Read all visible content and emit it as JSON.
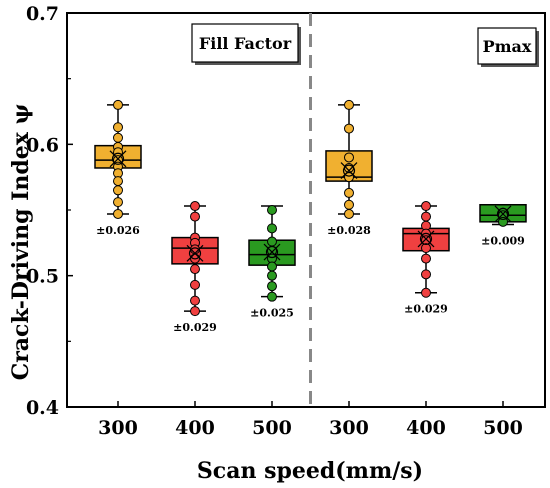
{
  "chart_data": {
    "type": "box",
    "xlabel": "Scan speed(mm/s)",
    "ylabel": "Crack-Driving Index ψ",
    "ylim": [
      0.4,
      0.7
    ],
    "yticks": [
      "0.4",
      "0.5",
      "0.6",
      "0.7"
    ],
    "groups": [
      {
        "label": "Fill Factor",
        "categories": [
          "300",
          "400",
          "500"
        ]
      },
      {
        "label": "Pmax",
        "categories": [
          "300",
          "400",
          "500"
        ]
      }
    ],
    "boxes": [
      {
        "group": 0,
        "category": "300",
        "color": "#F0B030",
        "q1": 0.582,
        "median": 0.588,
        "q3": 0.599,
        "mean": 0.589,
        "whisker_low": 0.547,
        "whisker_high": 0.63,
        "points": [
          0.63,
          0.613,
          0.605,
          0.598,
          0.594,
          0.588,
          0.583,
          0.578,
          0.572,
          0.565,
          0.556,
          0.547
        ],
        "sd_label": "±0.026"
      },
      {
        "group": 0,
        "category": "400",
        "color": "#F04040",
        "q1": 0.509,
        "median": 0.521,
        "q3": 0.529,
        "mean": 0.517,
        "whisker_low": 0.473,
        "whisker_high": 0.553,
        "points": [
          0.553,
          0.545,
          0.529,
          0.525,
          0.52,
          0.513,
          0.505,
          0.493,
          0.481,
          0.473
        ],
        "sd_label": "±0.029"
      },
      {
        "group": 0,
        "category": "500",
        "color": "#2A9A20",
        "q1": 0.508,
        "median": 0.516,
        "q3": 0.527,
        "mean": 0.518,
        "whisker_low": 0.484,
        "whisker_high": 0.553,
        "points": [
          0.55,
          0.536,
          0.526,
          0.519,
          0.513,
          0.507,
          0.5,
          0.492,
          0.484
        ],
        "sd_label": "±0.025"
      },
      {
        "group": 1,
        "category": "300",
        "color": "#F0B030",
        "q1": 0.572,
        "median": 0.575,
        "q3": 0.595,
        "mean": 0.58,
        "whisker_low": 0.547,
        "whisker_high": 0.63,
        "points": [
          0.63,
          0.612,
          0.59,
          0.582,
          0.575,
          0.563,
          0.554,
          0.547
        ],
        "sd_label": "±0.028"
      },
      {
        "group": 1,
        "category": "400",
        "color": "#F04040",
        "q1": 0.519,
        "median": 0.532,
        "q3": 0.536,
        "mean": 0.528,
        "whisker_low": 0.487,
        "whisker_high": 0.553,
        "points": [
          0.553,
          0.545,
          0.538,
          0.532,
          0.527,
          0.521,
          0.513,
          0.501,
          0.487
        ],
        "sd_label": "±0.029"
      },
      {
        "group": 1,
        "category": "500",
        "color": "#2A9A20",
        "q1": 0.541,
        "median": 0.546,
        "q3": 0.554,
        "mean": 0.547,
        "whisker_low": 0.539,
        "whisker_high": 0.554,
        "points": [
          0.548,
          0.546,
          0.541
        ],
        "sd_label": "±0.009"
      }
    ],
    "divider": "dashed vertical line between groups",
    "grid": false
  }
}
